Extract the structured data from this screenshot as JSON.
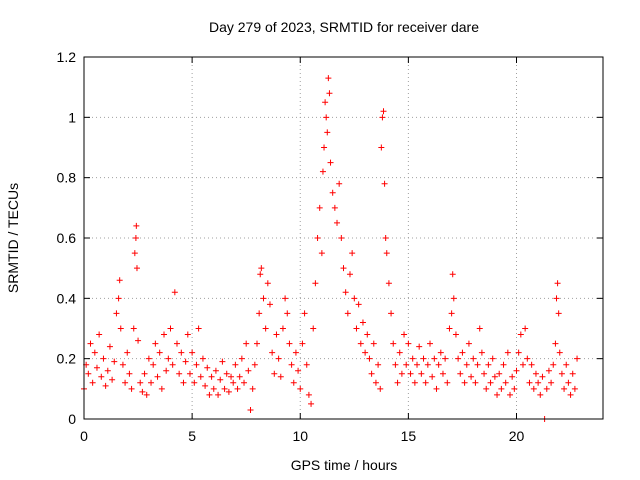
{
  "chart_data": {
    "type": "scatter",
    "title": "Day 279 of 2023, SRMTID for receiver dare",
    "xlabel": "GPS time / hours",
    "ylabel": "SRMTID / TECUs",
    "xlim": [
      0,
      24
    ],
    "ylim": [
      0,
      1.2
    ],
    "xticks": [
      0,
      5,
      10,
      15,
      20
    ],
    "xtick_labels": [
      "0",
      "5",
      "10",
      "15",
      "20"
    ],
    "yticks": [
      0,
      0.2,
      0.4,
      0.6,
      0.8,
      1.0,
      1.2
    ],
    "ytick_labels": [
      "0",
      "0.2",
      "0.4",
      "0.6",
      "0.8",
      "1",
      "1.2"
    ],
    "grid": true,
    "marker": "+",
    "color": "#ff0000",
    "series": [
      {
        "name": "SRMTID",
        "points": [
          [
            0.0,
            0.1
          ],
          [
            0.1,
            0.18
          ],
          [
            0.2,
            0.15
          ],
          [
            0.3,
            0.25
          ],
          [
            0.4,
            0.12
          ],
          [
            0.5,
            0.22
          ],
          [
            0.6,
            0.17
          ],
          [
            0.7,
            0.28
          ],
          [
            0.8,
            0.14
          ],
          [
            0.9,
            0.2
          ],
          [
            1.0,
            0.11
          ],
          [
            1.1,
            0.16
          ],
          [
            1.2,
            0.24
          ],
          [
            1.3,
            0.13
          ],
          [
            1.4,
            0.19
          ],
          [
            1.5,
            0.35
          ],
          [
            1.6,
            0.4
          ],
          [
            1.65,
            0.46
          ],
          [
            1.7,
            0.3
          ],
          [
            1.8,
            0.18
          ],
          [
            1.9,
            0.12
          ],
          [
            2.0,
            0.22
          ],
          [
            2.1,
            0.15
          ],
          [
            2.2,
            0.1
          ],
          [
            2.3,
            0.3
          ],
          [
            2.35,
            0.55
          ],
          [
            2.4,
            0.6
          ],
          [
            2.42,
            0.64
          ],
          [
            2.45,
            0.5
          ],
          [
            2.5,
            0.26
          ],
          [
            2.6,
            0.12
          ],
          [
            2.7,
            0.09
          ],
          [
            2.8,
            0.15
          ],
          [
            2.9,
            0.08
          ],
          [
            3.0,
            0.2
          ],
          [
            3.1,
            0.12
          ],
          [
            3.2,
            0.18
          ],
          [
            3.3,
            0.25
          ],
          [
            3.4,
            0.14
          ],
          [
            3.5,
            0.22
          ],
          [
            3.6,
            0.1
          ],
          [
            3.7,
            0.28
          ],
          [
            3.8,
            0.16
          ],
          [
            3.9,
            0.2
          ],
          [
            4.0,
            0.3
          ],
          [
            4.1,
            0.18
          ],
          [
            4.2,
            0.42
          ],
          [
            4.3,
            0.25
          ],
          [
            4.4,
            0.15
          ],
          [
            4.5,
            0.22
          ],
          [
            4.6,
            0.12
          ],
          [
            4.7,
            0.19
          ],
          [
            4.8,
            0.28
          ],
          [
            4.9,
            0.15
          ],
          [
            5.0,
            0.22
          ],
          [
            5.1,
            0.12
          ],
          [
            5.2,
            0.18
          ],
          [
            5.3,
            0.3
          ],
          [
            5.4,
            0.14
          ],
          [
            5.5,
            0.2
          ],
          [
            5.6,
            0.11
          ],
          [
            5.7,
            0.17
          ],
          [
            5.8,
            0.08
          ],
          [
            5.9,
            0.14
          ],
          [
            6.0,
            0.1
          ],
          [
            6.1,
            0.16
          ],
          [
            6.2,
            0.08
          ],
          [
            6.3,
            0.13
          ],
          [
            6.4,
            0.19
          ],
          [
            6.5,
            0.1
          ],
          [
            6.6,
            0.15
          ],
          [
            6.7,
            0.09
          ],
          [
            6.8,
            0.14
          ],
          [
            6.9,
            0.12
          ],
          [
            7.0,
            0.18
          ],
          [
            7.1,
            0.1
          ],
          [
            7.2,
            0.14
          ],
          [
            7.3,
            0.2
          ],
          [
            7.4,
            0.12
          ],
          [
            7.5,
            0.25
          ],
          [
            7.6,
            0.16
          ],
          [
            7.7,
            0.03
          ],
          [
            7.8,
            0.1
          ],
          [
            7.9,
            0.18
          ],
          [
            8.0,
            0.25
          ],
          [
            8.1,
            0.35
          ],
          [
            8.15,
            0.48
          ],
          [
            8.2,
            0.5
          ],
          [
            8.3,
            0.4
          ],
          [
            8.4,
            0.3
          ],
          [
            8.5,
            0.45
          ],
          [
            8.6,
            0.38
          ],
          [
            8.7,
            0.22
          ],
          [
            8.8,
            0.15
          ],
          [
            8.9,
            0.28
          ],
          [
            9.0,
            0.2
          ],
          [
            9.1,
            0.14
          ],
          [
            9.2,
            0.3
          ],
          [
            9.3,
            0.4
          ],
          [
            9.4,
            0.35
          ],
          [
            9.5,
            0.25
          ],
          [
            9.6,
            0.18
          ],
          [
            9.7,
            0.12
          ],
          [
            9.8,
            0.22
          ],
          [
            9.9,
            0.16
          ],
          [
            10.0,
            0.1
          ],
          [
            10.1,
            0.25
          ],
          [
            10.2,
            0.35
          ],
          [
            10.3,
            0.18
          ],
          [
            10.4,
            0.08
          ],
          [
            10.5,
            0.05
          ],
          [
            10.6,
            0.3
          ],
          [
            10.7,
            0.45
          ],
          [
            10.8,
            0.6
          ],
          [
            10.9,
            0.7
          ],
          [
            11.0,
            0.55
          ],
          [
            11.05,
            0.82
          ],
          [
            11.1,
            0.9
          ],
          [
            11.15,
            1.05
          ],
          [
            11.2,
            1.0
          ],
          [
            11.25,
            0.95
          ],
          [
            11.3,
            1.13
          ],
          [
            11.35,
            1.08
          ],
          [
            11.4,
            0.85
          ],
          [
            11.5,
            0.75
          ],
          [
            11.6,
            0.7
          ],
          [
            11.7,
            0.65
          ],
          [
            11.8,
            0.78
          ],
          [
            11.9,
            0.6
          ],
          [
            12.0,
            0.5
          ],
          [
            12.1,
            0.42
          ],
          [
            12.2,
            0.35
          ],
          [
            12.3,
            0.48
          ],
          [
            12.4,
            0.55
          ],
          [
            12.5,
            0.4
          ],
          [
            12.6,
            0.3
          ],
          [
            12.7,
            0.38
          ],
          [
            12.8,
            0.25
          ],
          [
            12.9,
            0.32
          ],
          [
            13.0,
            0.22
          ],
          [
            13.1,
            0.28
          ],
          [
            13.2,
            0.2
          ],
          [
            13.3,
            0.15
          ],
          [
            13.4,
            0.25
          ],
          [
            13.5,
            0.12
          ],
          [
            13.6,
            0.18
          ],
          [
            13.7,
            0.1
          ],
          [
            13.75,
            0.9
          ],
          [
            13.8,
            1.0
          ],
          [
            13.85,
            1.02
          ],
          [
            13.9,
            0.78
          ],
          [
            13.95,
            0.6
          ],
          [
            14.0,
            0.55
          ],
          [
            14.1,
            0.45
          ],
          [
            14.2,
            0.35
          ],
          [
            14.3,
            0.25
          ],
          [
            14.4,
            0.18
          ],
          [
            14.5,
            0.12
          ],
          [
            14.6,
            0.22
          ],
          [
            14.7,
            0.15
          ],
          [
            14.8,
            0.28
          ],
          [
            14.9,
            0.18
          ],
          [
            15.0,
            0.25
          ],
          [
            15.1,
            0.15
          ],
          [
            15.2,
            0.2
          ],
          [
            15.3,
            0.12
          ],
          [
            15.4,
            0.18
          ],
          [
            15.5,
            0.24
          ],
          [
            15.6,
            0.15
          ],
          [
            15.7,
            0.2
          ],
          [
            15.8,
            0.12
          ],
          [
            15.9,
            0.18
          ],
          [
            16.0,
            0.25
          ],
          [
            16.1,
            0.14
          ],
          [
            16.2,
            0.2
          ],
          [
            16.3,
            0.1
          ],
          [
            16.4,
            0.18
          ],
          [
            16.5,
            0.22
          ],
          [
            16.6,
            0.15
          ],
          [
            16.7,
            0.2
          ],
          [
            16.8,
            0.12
          ],
          [
            16.9,
            0.3
          ],
          [
            17.0,
            0.35
          ],
          [
            17.05,
            0.48
          ],
          [
            17.1,
            0.4
          ],
          [
            17.2,
            0.28
          ],
          [
            17.3,
            0.2
          ],
          [
            17.4,
            0.15
          ],
          [
            17.5,
            0.22
          ],
          [
            17.6,
            0.12
          ],
          [
            17.7,
            0.18
          ],
          [
            17.8,
            0.25
          ],
          [
            17.9,
            0.14
          ],
          [
            18.0,
            0.2
          ],
          [
            18.1,
            0.12
          ],
          [
            18.2,
            0.18
          ],
          [
            18.3,
            0.3
          ],
          [
            18.4,
            0.22
          ],
          [
            18.5,
            0.15
          ],
          [
            18.6,
            0.1
          ],
          [
            18.7,
            0.18
          ],
          [
            18.8,
            0.12
          ],
          [
            18.9,
            0.2
          ],
          [
            19.0,
            0.14
          ],
          [
            19.1,
            0.08
          ],
          [
            19.2,
            0.15
          ],
          [
            19.3,
            0.1
          ],
          [
            19.4,
            0.18
          ],
          [
            19.5,
            0.12
          ],
          [
            19.6,
            0.22
          ],
          [
            19.7,
            0.08
          ],
          [
            19.8,
            0.14
          ],
          [
            19.9,
            0.1
          ],
          [
            20.0,
            0.16
          ],
          [
            20.1,
            0.22
          ],
          [
            20.2,
            0.28
          ],
          [
            20.3,
            0.18
          ],
          [
            20.4,
            0.3
          ],
          [
            20.5,
            0.2
          ],
          [
            20.6,
            0.12
          ],
          [
            20.7,
            0.18
          ],
          [
            20.8,
            0.1
          ],
          [
            20.9,
            0.15
          ],
          [
            21.0,
            0.12
          ],
          [
            21.1,
            0.08
          ],
          [
            21.2,
            0.14
          ],
          [
            21.3,
            0.0
          ],
          [
            21.4,
            0.1
          ],
          [
            21.5,
            0.16
          ],
          [
            21.6,
            0.12
          ],
          [
            21.7,
            0.18
          ],
          [
            21.8,
            0.25
          ],
          [
            21.85,
            0.4
          ],
          [
            21.9,
            0.45
          ],
          [
            21.95,
            0.35
          ],
          [
            22.0,
            0.22
          ],
          [
            22.1,
            0.15
          ],
          [
            22.2,
            0.1
          ],
          [
            22.3,
            0.18
          ],
          [
            22.4,
            0.12
          ],
          [
            22.5,
            0.08
          ],
          [
            22.6,
            0.15
          ],
          [
            22.7,
            0.1
          ],
          [
            22.8,
            0.2
          ]
        ]
      }
    ]
  }
}
